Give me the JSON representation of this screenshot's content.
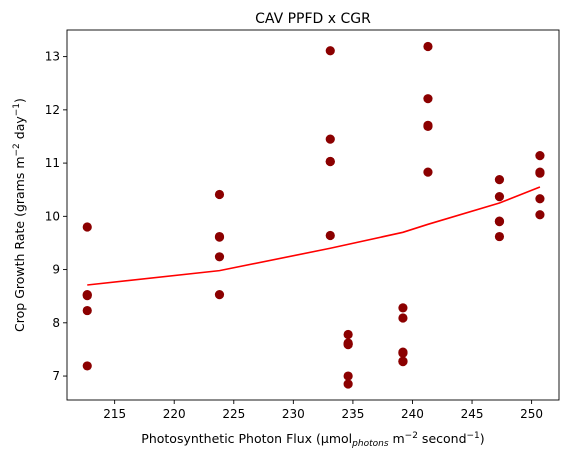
{
  "chart_data": {
    "type": "scatter",
    "title": "CAV PPFD x CGR",
    "xlabel": {
      "main": "Photosynthetic Photon Flux (µmol",
      "sub": "photons",
      "mid": " m",
      "sup1": "−2",
      "mid2": " second",
      "sup2": "−1",
      "end": ")"
    },
    "ylabel": {
      "main": "Crop Growth Rate (grams m",
      "sup1": "−2",
      "mid": " day",
      "sup2": "−1",
      "end": ")"
    },
    "xlim": [
      211.0,
      252.3
    ],
    "ylim": [
      6.55,
      13.5
    ],
    "xticks": [
      215,
      220,
      225,
      230,
      235,
      240,
      245,
      250
    ],
    "yticks": [
      7,
      8,
      9,
      10,
      11,
      12,
      13
    ],
    "grid": false,
    "point_color": "#8b0000",
    "line_color": "#ff0000",
    "scatter": {
      "x": [
        212.7,
        212.7,
        212.7,
        212.7,
        212.7,
        223.8,
        223.8,
        223.8,
        223.8,
        223.8,
        233.1,
        233.1,
        233.1,
        233.1,
        233.1,
        234.6,
        234.6,
        234.6,
        234.6,
        234.6,
        234.6,
        239.2,
        239.2,
        239.2,
        239.2,
        239.2,
        239.2,
        241.3,
        241.3,
        241.3,
        241.3,
        241.3,
        247.3,
        247.3,
        247.3,
        247.3,
        247.3,
        250.7,
        250.7,
        250.7,
        250.7,
        250.7
      ],
      "y": [
        9.8,
        8.53,
        8.51,
        8.23,
        7.19,
        10.41,
        9.62,
        9.61,
        9.24,
        8.53,
        13.11,
        11.45,
        11.03,
        11.03,
        9.64,
        7.78,
        7.62,
        7.6,
        7.59,
        7.0,
        6.85,
        8.28,
        8.09,
        7.45,
        7.43,
        7.28,
        7.27,
        13.19,
        12.21,
        11.71,
        11.69,
        10.83,
        10.69,
        10.37,
        9.91,
        9.9,
        9.62,
        11.14,
        10.83,
        10.81,
        10.33,
        10.03
      ]
    },
    "fit_line": {
      "x": [
        212.7,
        223.8,
        233.1,
        239.2,
        241.3,
        247.3,
        250.7
      ],
      "y": [
        8.71,
        8.98,
        9.4,
        9.7,
        9.85,
        10.25,
        10.55
      ]
    }
  }
}
